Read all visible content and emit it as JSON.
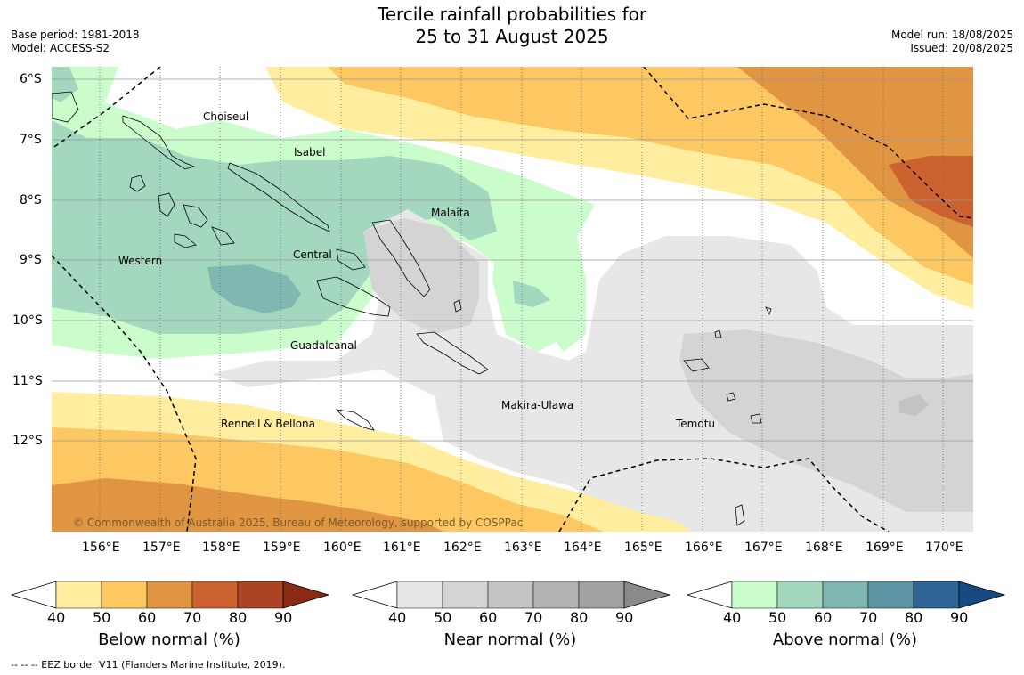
{
  "title": [
    "Tercile rainfall probabilities for",
    "25 to 31 August 2025"
  ],
  "meta_left": [
    "Base period: 1981-2018",
    "Model: ACCESS-S2"
  ],
  "meta_right": [
    "Model run: 18/08/2025",
    "Issued: 20/08/2025"
  ],
  "lat_labels": [
    "6°S",
    "7°S",
    "8°S",
    "9°S",
    "10°S",
    "11°S",
    "12°S"
  ],
  "lon_labels": [
    "156°E",
    "157°E",
    "158°E",
    "159°E",
    "160°E",
    "161°E",
    "162°E",
    "163°E",
    "164°E",
    "165°E",
    "166°E",
    "167°E",
    "168°E",
    "169°E",
    "170°E"
  ],
  "regions": [
    "Choiseul",
    "Isabel",
    "Malaita",
    "Western",
    "Central",
    "Guadalcanal",
    "Rennell & Bellona",
    "Makira-Ulawa",
    "Temotu"
  ],
  "copyright": "© Commonwealth of Australia 2025, Bureau of Meteorology, supported by COSPPac",
  "colorbars": [
    {
      "title": "Below normal (%)",
      "ticks": [
        "40",
        "50",
        "60",
        "70",
        "80",
        "90"
      ],
      "colors": [
        "#ffeea0",
        "#fdc862",
        "#e09543",
        "#cd6231",
        "#ab4324",
        "#8a2a14"
      ]
    },
    {
      "title": "Near normal (%)",
      "ticks": [
        "40",
        "50",
        "60",
        "70",
        "80",
        "90"
      ],
      "colors": [
        "#e7e7e7",
        "#d4d4d4",
        "#c3c3c3",
        "#b2b2b2",
        "#a2a2a2",
        "#8a8a8a"
      ]
    },
    {
      "title": "Above normal (%)",
      "ticks": [
        "40",
        "50",
        "60",
        "70",
        "80",
        "90"
      ],
      "colors": [
        "#cbfdcc",
        "#a3d8bf",
        "#80b7b0",
        "#5c95a3",
        "#2e6495",
        "#174a80"
      ]
    }
  ],
  "footnote": "--  --  -- EEZ border V11 (Flanders Marine Institute, 2019)."
}
